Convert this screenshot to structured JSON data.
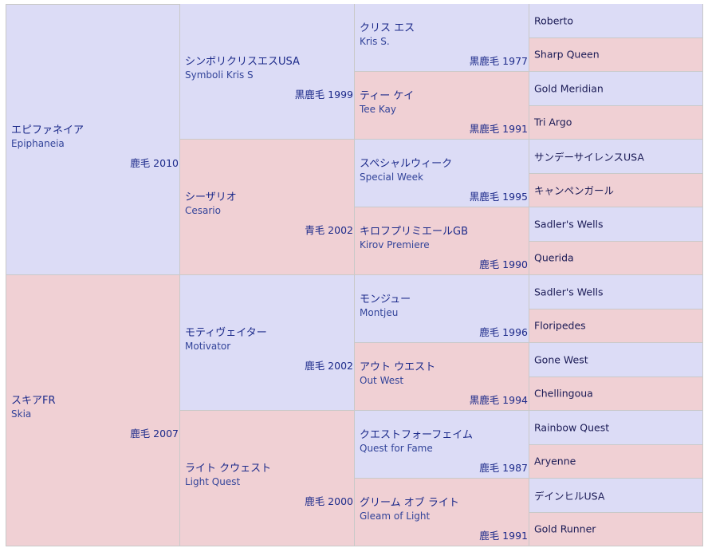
{
  "pedigree": {
    "gen1": [
      {
        "name": "エピファネイア",
        "eng": "Epiphaneia",
        "info": "鹿毛 2010",
        "sex": "m"
      },
      {
        "name": "スキアFR",
        "eng": "Skia",
        "info": "鹿毛 2007",
        "sex": "f"
      }
    ],
    "gen2": [
      {
        "name": "シンボリクリスエスUSA",
        "eng": "Symboli Kris S",
        "info": "黒鹿毛 1999",
        "sex": "m"
      },
      {
        "name": "シーザリオ",
        "eng": "Cesario",
        "info": "青毛 2002",
        "sex": "f"
      },
      {
        "name": "モティヴェイター",
        "eng": "Motivator",
        "info": "鹿毛 2002",
        "sex": "m"
      },
      {
        "name": "ライト クウェスト",
        "eng": "Light Quest",
        "info": "鹿毛 2000",
        "sex": "f"
      }
    ],
    "gen3": [
      {
        "name": "クリス エス",
        "eng": "Kris S.",
        "info": "黒鹿毛 1977",
        "sex": "m"
      },
      {
        "name": "ティー ケイ",
        "eng": "Tee Kay",
        "info": "黒鹿毛 1991",
        "sex": "f"
      },
      {
        "name": "スペシャルウィーク",
        "eng": "Special Week",
        "info": "黒鹿毛 1995",
        "sex": "m"
      },
      {
        "name": "キロフプリミエールGB",
        "eng": "Kirov Premiere",
        "info": "鹿毛 1990",
        "sex": "f"
      },
      {
        "name": "モンジュー",
        "eng": "Montjeu",
        "info": "鹿毛 1996",
        "sex": "m"
      },
      {
        "name": "アウト ウエスト",
        "eng": "Out West",
        "info": "黒鹿毛 1994",
        "sex": "f"
      },
      {
        "name": "クエストフォーフェイム",
        "eng": "Quest for Fame",
        "info": "鹿毛 1987",
        "sex": "m"
      },
      {
        "name": "グリーム オブ ライト",
        "eng": "Gleam of Light",
        "info": "鹿毛 1991",
        "sex": "f"
      }
    ],
    "gen4": [
      {
        "name": "Roberto",
        "sex": "m"
      },
      {
        "name": "Sharp Queen",
        "sex": "f"
      },
      {
        "name": "Gold Meridian",
        "sex": "m"
      },
      {
        "name": "Tri Argo",
        "sex": "f"
      },
      {
        "name": "サンデーサイレンスUSA",
        "sex": "m"
      },
      {
        "name": "キャンペンガール",
        "sex": "f"
      },
      {
        "name": "Sadler's Wells",
        "sex": "m"
      },
      {
        "name": "Querida",
        "sex": "f"
      },
      {
        "name": "Sadler's Wells",
        "sex": "m"
      },
      {
        "name": "Floripedes",
        "sex": "f"
      },
      {
        "name": "Gone West",
        "sex": "m"
      },
      {
        "name": "Chellingoua",
        "sex": "f"
      },
      {
        "name": "Rainbow Quest",
        "sex": "m"
      },
      {
        "name": "Aryenne",
        "sex": "f"
      },
      {
        "name": "デインヒルUSA",
        "sex": "m"
      },
      {
        "name": "Gold Runner",
        "sex": "f"
      }
    ]
  }
}
